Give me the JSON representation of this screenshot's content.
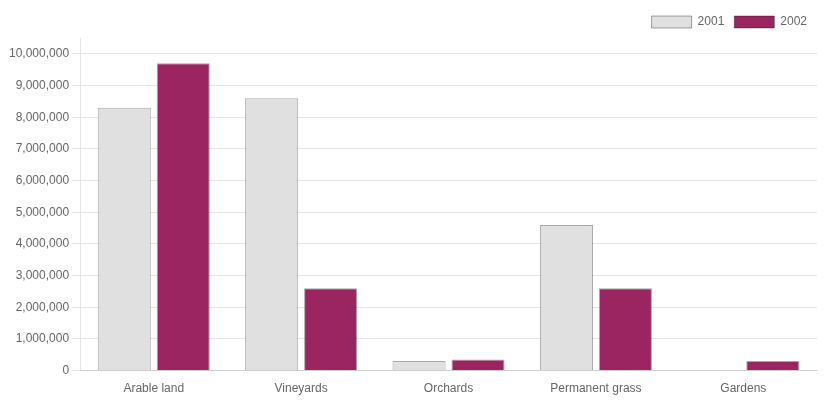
{
  "chart_data": {
    "type": "bar",
    "categories": [
      "Arable land",
      "Vineyards",
      "Orchards",
      "Permanent grass",
      "Gardens"
    ],
    "series": [
      {
        "name": "2001",
        "color": "#e0e0e0",
        "values": [
          8300000,
          8600000,
          300000,
          4600000,
          0
        ]
      },
      {
        "name": "2002",
        "color": "#9b2560",
        "values": [
          9700000,
          2600000,
          350000,
          2600000,
          300000
        ]
      }
    ],
    "ylim": [
      0,
      10500000
    ],
    "yticks": [
      0,
      {
        "value": 1000000,
        "label": "1,000,000"
      },
      {
        "value": 2000000,
        "label": "2,000,000"
      },
      {
        "value": 3000000,
        "label": "3,000,000"
      },
      {
        "value": 4000000,
        "label": "4,000,000"
      },
      {
        "value": 5000000,
        "label": "5,000,000"
      },
      {
        "value": 6000000,
        "label": "6,000,000"
      },
      {
        "value": 7000000,
        "label": "7,000,000"
      },
      {
        "value": 8000000,
        "label": "8,000,000"
      },
      {
        "value": 9000000,
        "label": "9,000,000"
      },
      {
        "value": 10000000,
        "label": "10,000,000"
      }
    ],
    "grid": true,
    "legend": "upper right"
  }
}
